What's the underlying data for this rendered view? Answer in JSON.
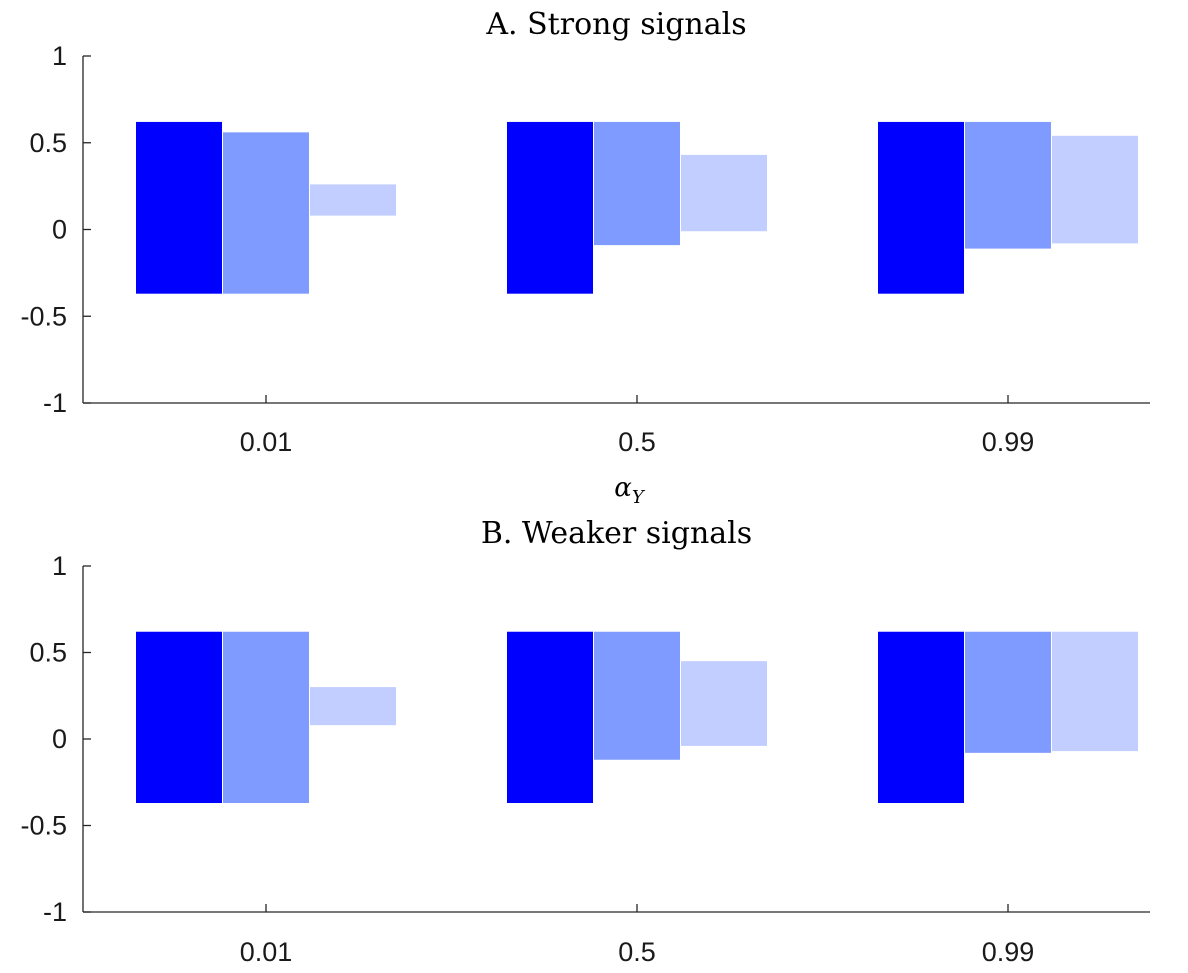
{
  "chart_data": [
    {
      "type": "bar",
      "title": "A. Strong signals",
      "xlabel": "α",
      "xlabel_sub": "Y",
      "ylabel": "",
      "ylim": [
        -1,
        1
      ],
      "yticks": [
        "-1",
        "-0.5",
        "0",
        "0.5",
        "1"
      ],
      "categories": [
        "0.01",
        "0.5",
        "0.99"
      ],
      "series": [
        {
          "color": "#0000ff",
          "ranges": [
            [
              -0.37,
              0.62
            ],
            [
              -0.37,
              0.62
            ],
            [
              -0.37,
              0.62
            ]
          ]
        },
        {
          "color": "#809bff",
          "ranges": [
            [
              -0.37,
              0.56
            ],
            [
              -0.09,
              0.62
            ],
            [
              -0.11,
              0.62
            ]
          ]
        },
        {
          "color": "#c1ceff",
          "ranges": [
            [
              0.08,
              0.26
            ],
            [
              -0.01,
              0.43
            ],
            [
              -0.08,
              0.54
            ]
          ]
        }
      ]
    },
    {
      "type": "bar",
      "title": "B. Weaker signals",
      "xlabel": "",
      "ylabel": "",
      "ylim": [
        -1,
        1
      ],
      "yticks": [
        "-1",
        "-0.5",
        "0",
        "0.5",
        "1"
      ],
      "categories": [
        "0.01",
        "0.5",
        "0.99"
      ],
      "series": [
        {
          "color": "#0000ff",
          "ranges": [
            [
              -0.37,
              0.62
            ],
            [
              -0.37,
              0.62
            ],
            [
              -0.37,
              0.62
            ]
          ]
        },
        {
          "color": "#809bff",
          "ranges": [
            [
              -0.37,
              0.62
            ],
            [
              -0.12,
              0.62
            ],
            [
              -0.08,
              0.62
            ]
          ]
        },
        {
          "color": "#c1ceff",
          "ranges": [
            [
              0.08,
              0.3
            ],
            [
              -0.04,
              0.45
            ],
            [
              -0.07,
              0.62
            ]
          ]
        }
      ]
    }
  ]
}
